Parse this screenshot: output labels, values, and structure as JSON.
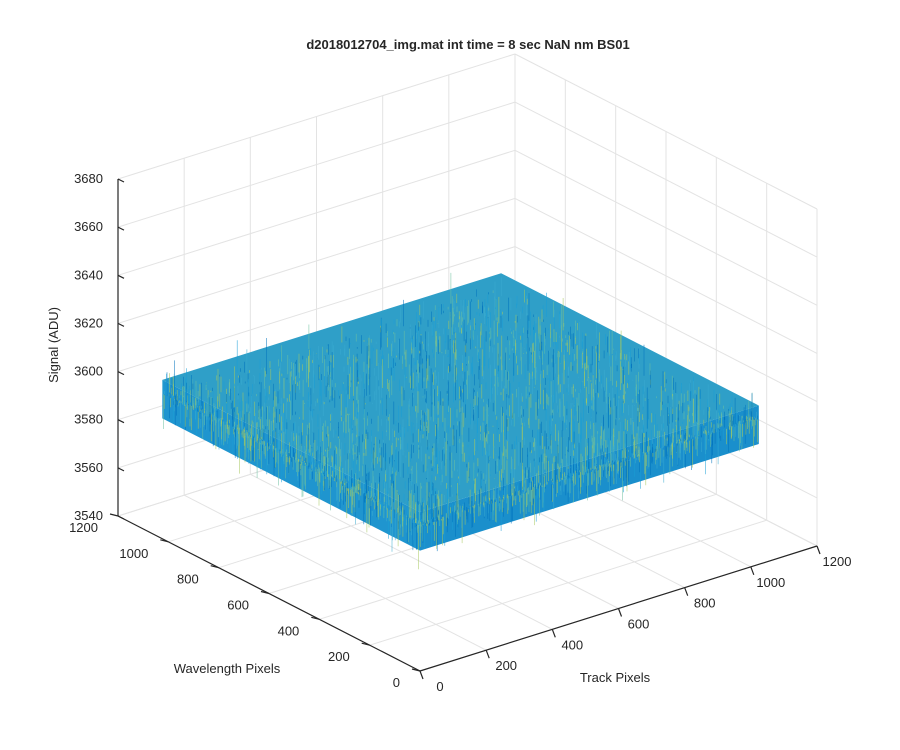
{
  "chart_data": {
    "type": "surface",
    "title": "d2018012704_img.mat int time = 8 sec  NaN nm BS01",
    "xlabel": "Track Pixels",
    "ylabel": "Wavelength Pixels",
    "zlabel": "Signal (ADU)",
    "xlim": [
      0,
      1200
    ],
    "ylim": [
      0,
      1200
    ],
    "zlim": [
      3540,
      3680
    ],
    "x_ticks": [
      "0",
      "200",
      "400",
      "600",
      "800",
      "1000",
      "1200"
    ],
    "y_ticks": [
      "0",
      "200",
      "400",
      "600",
      "800",
      "1000",
      "1200"
    ],
    "z_ticks": [
      "3540",
      "3560",
      "3580",
      "3600",
      "3620",
      "3640",
      "3660",
      "3680"
    ],
    "x_extent": [
      0,
      1024
    ],
    "y_extent": [
      0,
      1024
    ],
    "signal_mean": 3600,
    "signal_range": [
      3555,
      3650
    ],
    "grid": true,
    "colormap": [
      "#0072bd",
      "#1a9fd6",
      "#3aaad0",
      "#6cbfa0",
      "#a6c85e"
    ]
  }
}
